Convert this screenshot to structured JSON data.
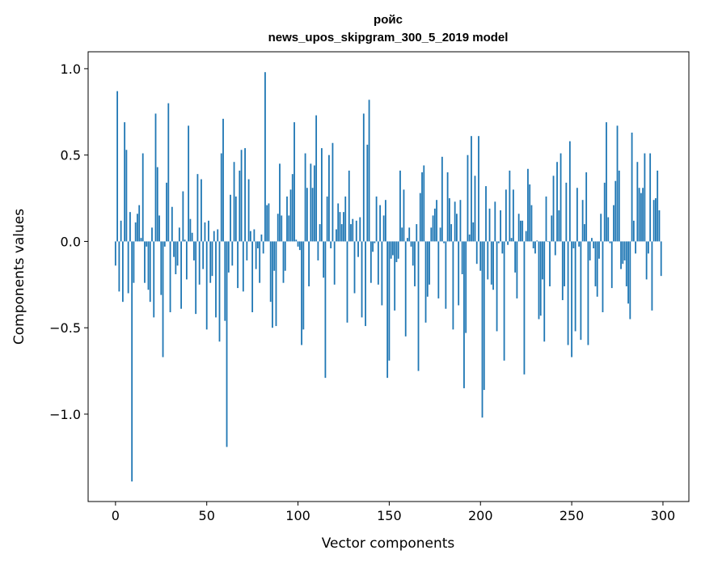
{
  "chart_data": {
    "type": "bar",
    "title": "ройс",
    "subtitle": "news_upos_skipgram_300_5_2019 model",
    "xlabel": "Vector components",
    "ylabel": "Components values",
    "xlim": [
      -15,
      314.2
    ],
    "ylim": [
      -1.506,
      1.098
    ],
    "xticks": [
      0,
      50,
      100,
      150,
      200,
      250,
      300
    ],
    "xtick_labels": [
      "0",
      "50",
      "100",
      "150",
      "200",
      "250",
      "300"
    ],
    "yticks": [
      1.0,
      0.5,
      0.0,
      -0.5,
      -1.0
    ],
    "ytick_labels": [
      "1.0",
      "0.5",
      "0.0",
      "−0.5",
      "−1.0"
    ],
    "grid": false,
    "bar_color": "#1f77b4",
    "values": [
      -0.14,
      0.87,
      -0.29,
      0.12,
      -0.35,
      0.69,
      0.53,
      -0.3,
      0.17,
      -1.39,
      -0.24,
      0.11,
      0.16,
      0.21,
      0.02,
      0.51,
      -0.24,
      -0.03,
      -0.28,
      -0.35,
      0.08,
      -0.44,
      0.74,
      0.43,
      0.15,
      -0.31,
      -0.67,
      -0.03,
      0.34,
      0.8,
      -0.41,
      0.2,
      -0.09,
      -0.19,
      -0.14,
      0.08,
      -0.39,
      0.29,
      0.01,
      -0.22,
      0.67,
      0.13,
      0.05,
      -0.11,
      -0.42,
      0.39,
      -0.25,
      0.36,
      -0.16,
      0.11,
      -0.51,
      0.12,
      -0.24,
      -0.2,
      0.06,
      -0.44,
      0.07,
      -0.58,
      0.51,
      0.71,
      -0.46,
      -1.19,
      -0.18,
      0.27,
      -0.14,
      0.46,
      0.26,
      -0.27,
      0.41,
      0.53,
      -0.29,
      0.54,
      -0.11,
      0.36,
      0.06,
      -0.41,
      0.07,
      -0.16,
      -0.04,
      -0.24,
      0.04,
      -0.07,
      0.98,
      0.21,
      0.22,
      -0.35,
      -0.5,
      -0.17,
      -0.49,
      0.16,
      0.45,
      0.15,
      -0.24,
      -0.17,
      0.26,
      0.15,
      0.3,
      0.39,
      0.69,
      0.01,
      -0.03,
      -0.05,
      -0.6,
      -0.51,
      0.51,
      0.31,
      -0.26,
      0.45,
      0.31,
      0.44,
      0.73,
      -0.11,
      0.1,
      0.54,
      -0.21,
      -0.79,
      0.26,
      0.5,
      -0.04,
      0.57,
      -0.25,
      0.07,
      0.22,
      0.17,
      0.1,
      0.17,
      0.26,
      -0.47,
      0.41,
      0.1,
      0.13,
      -0.3,
      0.12,
      -0.09,
      0.14,
      -0.44,
      0.74,
      -0.49,
      0.56,
      0.82,
      -0.24,
      -0.06,
      -0.01,
      0.26,
      -0.25,
      0.21,
      -0.37,
      0.15,
      0.24,
      -0.79,
      -0.69,
      -0.1,
      -0.08,
      -0.4,
      -0.12,
      -0.1,
      0.41,
      0.08,
      0.3,
      -0.55,
      0.02,
      0.08,
      -0.03,
      -0.14,
      -0.26,
      0.1,
      -0.75,
      0.28,
      0.4,
      0.44,
      -0.47,
      -0.32,
      -0.25,
      0.08,
      0.15,
      0.19,
      0.24,
      -0.33,
      0.08,
      0.49,
      -0.01,
      -0.39,
      0.4,
      0.25,
      0.1,
      -0.51,
      0.23,
      0.16,
      -0.37,
      0.24,
      -0.19,
      -0.85,
      -0.53,
      0.5,
      0.04,
      0.61,
      0.11,
      0.38,
      -0.13,
      0.61,
      -0.17,
      -1.02,
      -0.86,
      0.32,
      -0.22,
      0.19,
      -0.25,
      -0.28,
      0.23,
      -0.52,
      -0.01,
      0.18,
      -0.07,
      -0.69,
      0.3,
      -0.02,
      0.41,
      0.02,
      0.3,
      -0.18,
      -0.33,
      0.16,
      0.12,
      0.12,
      -0.77,
      0.06,
      0.42,
      0.33,
      0.21,
      -0.04,
      -0.07,
      0.005,
      -0.45,
      -0.43,
      -0.22,
      -0.58,
      0.26,
      -0.003,
      -0.26,
      0.15,
      0.38,
      -0.08,
      0.46,
      0.18,
      0.51,
      -0.34,
      -0.26,
      0.34,
      -0.6,
      0.58,
      -0.67,
      -0.04,
      -0.52,
      0.31,
      -0.03,
      -0.57,
      0.24,
      0.1,
      0.4,
      -0.6,
      -0.11,
      0.02,
      -0.04,
      -0.26,
      -0.32,
      -0.1,
      0.16,
      -0.41,
      0.34,
      0.69,
      0.14,
      -0.01,
      -0.27,
      0.21,
      0.35,
      0.67,
      0.41,
      -0.16,
      -0.13,
      -0.11,
      -0.26,
      -0.36,
      -0.45,
      0.63,
      0.12,
      -0.07,
      0.46,
      0.31,
      0.28,
      0.31,
      0.51,
      -0.22,
      -0.07,
      0.51,
      -0.4,
      0.24,
      0.25,
      0.41,
      0.18,
      -0.2
    ]
  }
}
